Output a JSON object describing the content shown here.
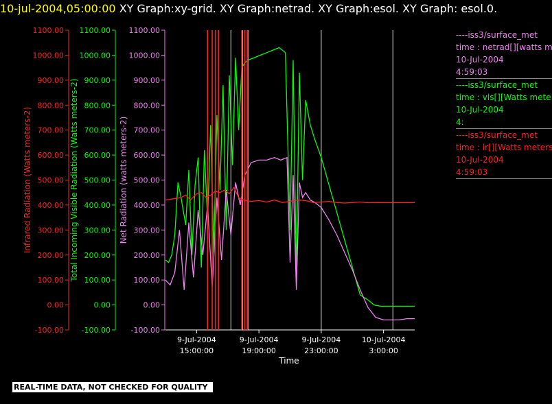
{
  "title": {
    "timestamp": "10-jul-2004,05:00:00",
    "rest": " XY Graph:xy-grid.  XY Graph:netrad.  XY Graph:esol.  XY Graph: esol.0."
  },
  "footer": "REAL-TIME DATA, NOT CHECKED FOR QUALITY",
  "legend": [
    {
      "name": "----iss3/surface_met",
      "var": "time : netrad[][watts me",
      "date": "10-Jul-2004",
      "time": "4:59:03",
      "color": "#ee82ee"
    },
    {
      "name": "----iss3/surface_met",
      "var": "time : vis[][Watts mete",
      "date": "10-Jul-2004",
      "time": "4:",
      "color": "#00ff00"
    },
    {
      "name": "----iss3/surface_met",
      "var": "time : ir[][Watts meters",
      "date": "10-Jul-2004",
      "time": "4:59:03",
      "color": "#ff2020"
    }
  ],
  "colors": {
    "ir": "#ff2020",
    "vis": "#00ff00",
    "net": "#ee82ee",
    "axis": "#ffffff"
  },
  "chart_data": {
    "type": "line",
    "xlabel": "Time",
    "x_ticks": [
      {
        "date": "9-Jul-2004",
        "time": "15:00:00",
        "h": 15
      },
      {
        "date": "9-Jul-2004",
        "time": "19:00:00",
        "h": 19
      },
      {
        "date": "9-Jul-2004",
        "time": "23:00:00",
        "h": 23
      },
      {
        "date": "10-Jul-2004",
        "time": "3:00:00",
        "h": 27
      }
    ],
    "x_hours_range": [
      13,
      29
    ],
    "y_axes": [
      {
        "key": "ir",
        "label": "Infrared Radiation (Watts meters-2)",
        "color": "#ff2020",
        "ylim": [
          -100,
          1100
        ]
      },
      {
        "key": "vis",
        "label": "Total Incoming Visible Radiation (Watts meters-2)",
        "color": "#00ff00",
        "ylim": [
          -100,
          1100
        ]
      },
      {
        "key": "net",
        "label": "Net Radiation (watts meters-2)",
        "color": "#ee82ee",
        "ylim": [
          -100,
          1100
        ]
      }
    ],
    "y_ticks": [
      "1100.00",
      "1000.00",
      "900.00",
      "800.00",
      "700.00",
      "600.00",
      "500.00",
      "400.00",
      "300.00",
      "200.00",
      "100.00",
      "0.00",
      "-100.00"
    ],
    "vertical_gridlines_hours": [
      17.2,
      17.95,
      18.3,
      23,
      27.6
    ],
    "series": [
      {
        "key": "vis",
        "x": [
          13.0,
          13.2,
          13.4,
          13.6,
          13.8,
          14.0,
          14.3,
          14.5,
          14.7,
          14.9,
          15.1,
          15.3,
          15.5,
          15.7,
          15.9,
          16.1,
          16.3,
          16.5,
          16.7,
          16.9,
          17.1,
          17.3,
          17.5,
          17.7,
          17.9,
          18.1,
          18.3,
          18.7,
          19.1,
          19.5,
          19.9,
          20.3,
          20.7,
          21.0,
          21.2,
          21.4,
          21.6,
          21.8,
          22.0,
          22.3,
          22.6,
          23.0,
          23.5,
          24.0,
          24.5,
          25.0,
          25.5,
          26.0,
          26.4,
          26.8,
          27.2,
          27.6,
          28.0,
          28.4,
          28.8,
          29.0
        ],
        "y": [
          180,
          170,
          200,
          280,
          490,
          430,
          320,
          540,
          200,
          480,
          590,
          150,
          620,
          340,
          720,
          210,
          760,
          460,
          880,
          300,
          920,
          560,
          990,
          700,
          950,
          970,
          980,
          990,
          1000,
          1010,
          1020,
          1030,
          1010,
          300,
          980,
          110,
          930,
          500,
          820,
          720,
          660,
          590,
          480,
          370,
          260,
          150,
          40,
          20,
          0,
          -5,
          -5,
          -5,
          -5,
          -5,
          -5,
          -5
        ]
      },
      {
        "key": "net",
        "x": [
          13.0,
          13.3,
          13.6,
          13.9,
          14.2,
          14.5,
          14.8,
          15.1,
          15.4,
          15.7,
          16.0,
          16.3,
          16.6,
          16.9,
          17.2,
          17.5,
          17.8,
          18.1,
          18.5,
          19.0,
          19.5,
          20.0,
          20.4,
          20.8,
          21.0,
          21.2,
          21.4,
          21.6,
          21.8,
          22.0,
          22.3,
          22.6,
          23.0,
          23.5,
          24.0,
          24.5,
          25.0,
          25.5,
          26.0,
          26.5,
          27.0,
          27.5,
          28.0,
          28.5,
          29.0
        ],
        "y": [
          100,
          80,
          130,
          300,
          60,
          330,
          110,
          380,
          200,
          400,
          70,
          430,
          180,
          460,
          280,
          490,
          400,
          520,
          570,
          580,
          580,
          590,
          580,
          590,
          170,
          520,
          60,
          490,
          430,
          450,
          420,
          410,
          390,
          340,
          280,
          210,
          140,
          60,
          -10,
          -50,
          -60,
          -60,
          -60,
          -55,
          -55
        ]
      },
      {
        "key": "ir",
        "x": [
          13.0,
          13.5,
          14.0,
          14.3,
          14.6,
          15.0,
          15.3,
          15.6,
          15.9,
          16.2,
          16.5,
          16.8,
          17.1,
          17.4,
          17.7,
          18.0,
          18.5,
          19.0,
          19.5,
          20.0,
          20.5,
          21.0,
          21.5,
          22.0,
          22.5,
          23.0,
          23.5,
          24.0,
          24.5,
          25.0,
          25.5,
          26.0,
          26.5,
          27.0,
          27.5,
          28.0,
          28.5,
          29.0
        ],
        "y": [
          420,
          425,
          430,
          440,
          420,
          445,
          450,
          430,
          440,
          455,
          450,
          460,
          445,
          470,
          430,
          420,
          415,
          418,
          412,
          420,
          410,
          415,
          420,
          418,
          410,
          412,
          415,
          410,
          408,
          410,
          412,
          409,
          410,
          410,
          410,
          410,
          410,
          410
        ]
      }
    ],
    "ir_spikes_hours": [
      15.7,
      16.0,
      16.2,
      16.4,
      17.9,
      18.1,
      18.25
    ]
  }
}
